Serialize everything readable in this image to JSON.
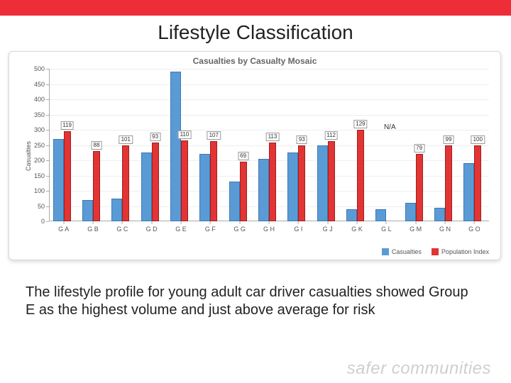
{
  "header": {
    "accent_color": "#ed2e38",
    "title": "Lifestyle Classification"
  },
  "chart": {
    "type": "bar",
    "title": "Casualties by Casualty Mosaic",
    "title_color": "#666666",
    "title_fontsize": 12,
    "background_color": "#ffffff",
    "border_color": "#d8d8d8",
    "grid_color": "#eeeeee",
    "axis_color": "#aaaaaa",
    "yaxis": {
      "label": "Casualties",
      "label_fontsize": 9,
      "min": 0,
      "max": 500,
      "step": 50
    },
    "categories": [
      "G A",
      "G B",
      "G C",
      "G D",
      "G E",
      "G F",
      "G G",
      "G H",
      "G I",
      "G J",
      "G K",
      "G L",
      "G M",
      "G N",
      "G O"
    ],
    "tick_fontsize": 9,
    "series": {
      "casualties": {
        "label": "Casualties",
        "color": "#5b9bd5",
        "border": "#3c78b5",
        "bar_width_ratio": 0.36,
        "values": [
          270,
          70,
          75,
          225,
          490,
          220,
          130,
          205,
          225,
          250,
          40,
          40,
          60,
          45,
          190
        ]
      },
      "population_index": {
        "label": "Population Index",
        "color": "#e33434",
        "border": "#a01f1f",
        "bar_width_ratio": 0.24,
        "values": [
          295,
          230,
          250,
          258,
          265,
          263,
          195,
          258,
          250,
          262,
          300,
          null,
          220,
          248,
          250
        ],
        "value_labels": [
          "119",
          "88",
          "101",
          "93",
          "110",
          "107",
          "69",
          "113",
          "93",
          "112",
          "129",
          "N/A",
          "79",
          "99",
          "100"
        ],
        "label_fontsize": 8,
        "label_border": "#999999"
      }
    },
    "legend": {
      "position": "bottom-right",
      "fontsize": 9,
      "items": [
        {
          "key": "casualties",
          "label": "Casualties"
        },
        {
          "key": "population_index",
          "label": "Population Index"
        }
      ]
    }
  },
  "caption": "The lifestyle profile for young adult car driver casualties showed Group E as the highest volume and just above average for risk",
  "footer": {
    "brand_text": "safer communities",
    "brand_color": "#cfcfcf"
  }
}
